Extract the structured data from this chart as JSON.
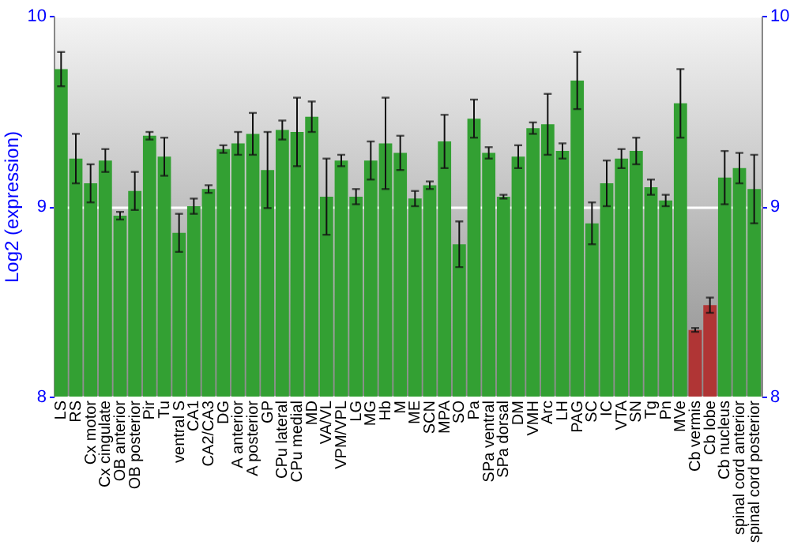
{
  "chart_data": {
    "type": "bar",
    "ylabel": "Log2 (expression)",
    "categories": [
      "LS",
      "RS",
      "Cx motor",
      "Cx cingulate",
      "OB anterior",
      "OB posterior",
      "Pir",
      "Tu",
      "ventral S",
      "CA1",
      "CA2/CA3",
      "DG",
      "A anterior",
      "A posterior",
      "GP",
      "CPu lateral",
      "CPu medial",
      "MD",
      "VA/VL",
      "VPM/VPL",
      "LG",
      "MG",
      "Hb",
      "M",
      "ME",
      "SCN",
      "MPA",
      "SO",
      "Pa",
      "SPa ventral",
      "SPa dorsal",
      "DM",
      "VMH",
      "Arc",
      "LH",
      "PAG",
      "SC",
      "IC",
      "VTA",
      "SN",
      "Tg",
      "Pn",
      "MVe",
      "Cb vermis",
      "Cb lobe",
      "Cb nucleus",
      "spinal cord anterior",
      "spinal cord posterior"
    ],
    "values": [
      9.72,
      9.25,
      9.12,
      9.24,
      8.95,
      9.08,
      9.37,
      9.26,
      8.86,
      9.0,
      9.09,
      9.3,
      9.33,
      9.38,
      9.19,
      9.4,
      9.39,
      9.47,
      9.05,
      9.24,
      9.05,
      9.24,
      9.33,
      9.28,
      9.04,
      9.11,
      9.34,
      8.8,
      9.46,
      9.28,
      9.05,
      9.26,
      9.41,
      9.43,
      9.29,
      9.66,
      8.91,
      9.12,
      9.25,
      9.29,
      9.1,
      9.03,
      9.54,
      8.35,
      8.48,
      9.15,
      9.2,
      9.09
    ],
    "errors": [
      0.09,
      0.13,
      0.1,
      0.06,
      0.02,
      0.1,
      0.02,
      0.1,
      0.1,
      0.04,
      0.02,
      0.02,
      0.06,
      0.11,
      0.2,
      0.05,
      0.18,
      0.08,
      0.2,
      0.03,
      0.04,
      0.1,
      0.24,
      0.09,
      0.04,
      0.02,
      0.14,
      0.12,
      0.1,
      0.03,
      0.01,
      0.06,
      0.03,
      0.16,
      0.04,
      0.15,
      0.11,
      0.12,
      0.05,
      0.07,
      0.04,
      0.03,
      0.18,
      0.01,
      0.04,
      0.14,
      0.08,
      0.18
    ],
    "colors": [
      "#33a033",
      "#33a033",
      "#33a033",
      "#33a033",
      "#33a033",
      "#33a033",
      "#33a033",
      "#33a033",
      "#33a033",
      "#33a033",
      "#33a033",
      "#33a033",
      "#33a033",
      "#33a033",
      "#33a033",
      "#33a033",
      "#33a033",
      "#33a033",
      "#33a033",
      "#33a033",
      "#33a033",
      "#33a033",
      "#33a033",
      "#33a033",
      "#33a033",
      "#33a033",
      "#33a033",
      "#33a033",
      "#33a033",
      "#33a033",
      "#33a033",
      "#33a033",
      "#33a033",
      "#33a033",
      "#33a033",
      "#33a033",
      "#33a033",
      "#33a033",
      "#33a033",
      "#33a033",
      "#33a033",
      "#33a033",
      "#33a033",
      "#b03535",
      "#b03535",
      "#33a033",
      "#33a033",
      "#33a033"
    ],
    "ylim": [
      8,
      10
    ],
    "yticks": [
      8,
      9,
      10
    ],
    "y2lim": [
      8,
      10
    ],
    "y2ticks": [
      8,
      9,
      10
    ],
    "grid": "y"
  }
}
